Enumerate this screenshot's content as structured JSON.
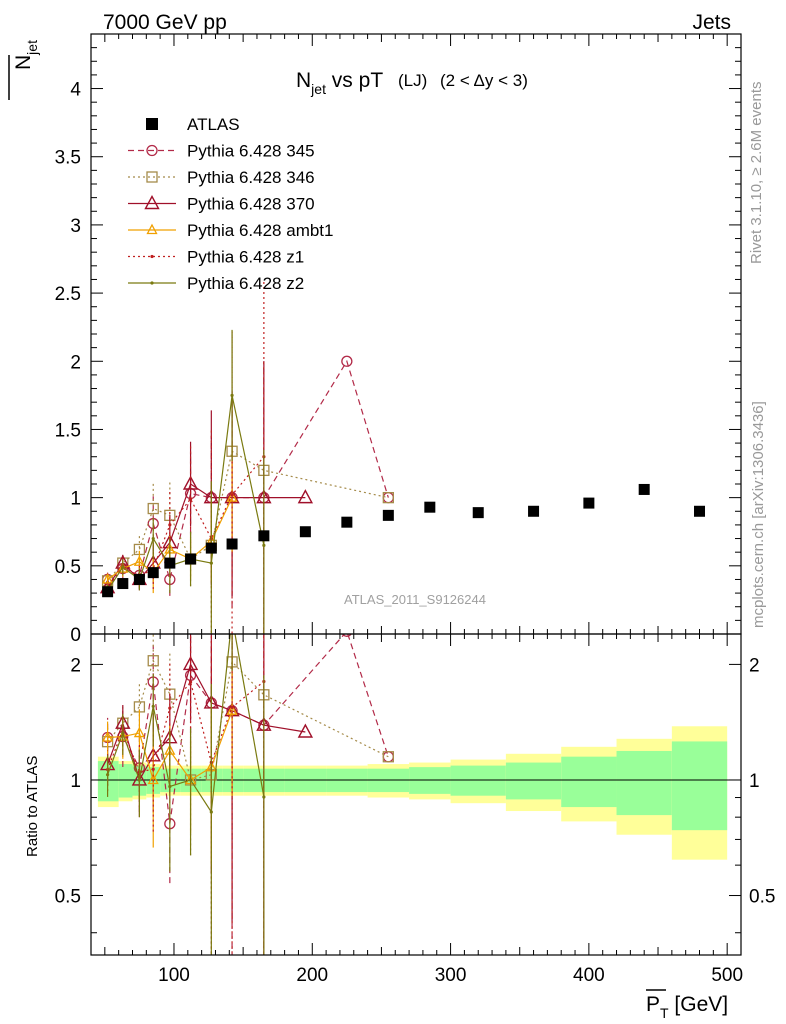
{
  "header": {
    "left": "7000 GeV pp",
    "right": "Jets"
  },
  "side_labels": {
    "rivet": "Rivet 3.1.10, ≥ 2.6M events",
    "mcplots": "mcplots.cern.ch [arXiv:1306.3436]"
  },
  "watermark": "ATLAS_2011_S9126244",
  "title": {
    "main": "N",
    "main_sub": "jet",
    "vs": " vs pT",
    "lj": "(LJ)",
    "range": "(2 < Δy < 3)"
  },
  "ylabel_main": {
    "text": "N",
    "sub": "jet"
  },
  "ylabel_ratio": "Ratio to ATLAS",
  "xlabel": {
    "text": "P",
    "sub": "T",
    "unit": " [GeV]"
  },
  "colors": {
    "data": "#000000",
    "p345": "#b22a48",
    "p346": "#a58b4a",
    "p370": "#a0102a",
    "ambt1": "#f0a000",
    "z1": "#c02020",
    "z2": "#7a7a10",
    "band_inner": "#99ff99",
    "band_outer": "#ffff99"
  },
  "chart_data": {
    "type": "scatter",
    "xlim": [
      40,
      510
    ],
    "ylim_main": [
      0,
      4.4
    ],
    "ylim_ratio": [
      0.35,
      2.4
    ],
    "ratio_scale": "log",
    "x_ticks": [
      100,
      200,
      300,
      400,
      500
    ],
    "y_ticks_main": [
      0,
      0.5,
      1,
      1.5,
      2,
      2.5,
      3,
      3.5,
      4
    ],
    "y_ticks_ratio": [
      0.5,
      1,
      2
    ],
    "legend_position": "top-left",
    "data": {
      "name": "ATLAS",
      "x": [
        52,
        63,
        75,
        85,
        97,
        112,
        127,
        142,
        165,
        195,
        225,
        255,
        285,
        320,
        360,
        400,
        440,
        480
      ],
      "y": [
        0.31,
        0.37,
        0.4,
        0.45,
        0.52,
        0.55,
        0.63,
        0.66,
        0.72,
        0.75,
        0.82,
        0.87,
        0.93,
        0.89,
        0.9,
        0.96,
        1.06,
        0.9
      ],
      "band_x": [
        45,
        60,
        70,
        80,
        90,
        105,
        120,
        135,
        150,
        180,
        210,
        240,
        270,
        300,
        340,
        380,
        420,
        460,
        500
      ],
      "band_inner": [
        0.12,
        0.1,
        0.09,
        0.08,
        0.07,
        0.07,
        0.07,
        0.07,
        0.07,
        0.07,
        0.07,
        0.07,
        0.08,
        0.09,
        0.11,
        0.15,
        0.19,
        0.26
      ],
      "band_outer": [
        0.15,
        0.12,
        0.11,
        0.1,
        0.09,
        0.09,
        0.09,
        0.09,
        0.09,
        0.09,
        0.09,
        0.1,
        0.11,
        0.13,
        0.17,
        0.22,
        0.28,
        0.38
      ]
    },
    "series": [
      {
        "name": "Pythia 6.428 345",
        "style": "dashed",
        "marker": "circle",
        "colorKey": "p345",
        "x": [
          52,
          63,
          75,
          85,
          97,
          112,
          127,
          142,
          165,
          225,
          255
        ],
        "y": [
          0.4,
          0.48,
          0.43,
          0.81,
          0.4,
          1.03,
          1.0,
          1.0,
          1.0,
          2.0,
          1.0
        ],
        "err": [
          0.05,
          0.08,
          0.1,
          0.2,
          0.12,
          0.3,
          0.45,
          0.8,
          1.0,
          0,
          0
        ]
      },
      {
        "name": "Pythia 6.428 346",
        "style": "dotted",
        "marker": "square",
        "colorKey": "p346",
        "x": [
          52,
          63,
          75,
          85,
          97,
          112,
          127,
          142,
          165,
          255
        ],
        "y": [
          0.39,
          0.52,
          0.62,
          0.92,
          0.87,
          0.55,
          0.65,
          1.34,
          1.2,
          1.0
        ],
        "err": [
          0.04,
          0.06,
          0.1,
          0.2,
          0.25,
          0.2,
          0.5,
          0.88,
          0.8,
          0
        ]
      },
      {
        "name": "Pythia 6.428 370",
        "style": "solid",
        "marker": "triangle",
        "colorKey": "p370",
        "x": [
          52,
          63,
          75,
          85,
          97,
          112,
          127,
          142,
          165,
          195
        ],
        "y": [
          0.34,
          0.52,
          0.4,
          0.52,
          0.67,
          1.1,
          1.0,
          1.0,
          1.0,
          1.0
        ],
        "err": [
          0.04,
          0.06,
          0.08,
          0.15,
          0.2,
          0.31,
          0.64,
          0.72,
          1.0,
          0
        ]
      },
      {
        "name": "Pythia 6.428 ambt1",
        "style": "solid",
        "marker": "triangle-small",
        "colorKey": "ambt1",
        "x": [
          52,
          63,
          75,
          85,
          97,
          112,
          127,
          142
        ],
        "y": [
          0.4,
          0.48,
          0.53,
          0.45,
          0.62,
          0.55,
          0.68,
          1.0
        ],
        "err": [
          0.04,
          0.06,
          0.08,
          0.15,
          0.1,
          0.15,
          0.3,
          0.4
        ]
      },
      {
        "name": "Pythia 6.428 z1",
        "style": "dotted",
        "marker": "dot",
        "colorKey": "z1",
        "x": [
          52,
          63,
          75,
          85,
          97,
          112,
          127,
          142,
          165
        ],
        "y": [
          0.33,
          0.5,
          0.42,
          0.48,
          0.8,
          0.99,
          0.7,
          1.02,
          1.3
        ],
        "err": [
          0.04,
          0.06,
          0.08,
          0.15,
          0.25,
          0.4,
          0.8,
          1.2,
          1.3
        ]
      },
      {
        "name": "Pythia 6.428 z2",
        "style": "solid",
        "marker": "dot",
        "colorKey": "z2",
        "x": [
          52,
          63,
          75,
          85,
          97,
          112,
          127,
          142,
          165
        ],
        "y": [
          0.32,
          0.49,
          0.4,
          0.7,
          0.5,
          0.55,
          0.52,
          1.75,
          0.65
        ],
        "err": [
          0.04,
          0.06,
          0.08,
          0.15,
          0.2,
          0.2,
          0.6,
          0.48,
          0.7
        ]
      }
    ]
  }
}
